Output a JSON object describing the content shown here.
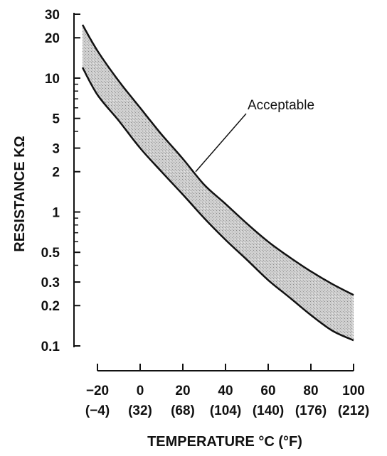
{
  "chart_data": {
    "type": "area",
    "title": "",
    "xlabel": "TEMPERATURE °C (°F)",
    "ylabel": "RESISTANCE KΩ",
    "y_scale": "log",
    "ylim": [
      0.1,
      30
    ],
    "xlim": [
      -20,
      100
    ],
    "y_ticks": [
      "30",
      "20",
      "10",
      "5",
      "3",
      "2",
      "1",
      "0.5",
      "0.3",
      "0.2",
      "0.1"
    ],
    "y_tick_values": [
      30,
      20,
      10,
      5,
      3,
      2,
      1,
      0.5,
      0.3,
      0.2,
      0.1
    ],
    "x_ticks_c": [
      "−20",
      "0",
      "20",
      "40",
      "60",
      "80",
      "100"
    ],
    "x_ticks_f": [
      "(−4)",
      "(32)",
      "(68)",
      "(104)",
      "(140)",
      "(176)",
      "(212)"
    ],
    "x_tick_values": [
      -20,
      0,
      20,
      40,
      60,
      80,
      100
    ],
    "series": [
      {
        "x": [
          -27,
          -20,
          -10,
          0,
          10,
          20,
          30,
          40,
          50,
          60,
          70,
          80,
          90,
          100
        ],
        "upper": [
          25,
          16,
          9.5,
          6.0,
          3.8,
          2.5,
          1.6,
          1.15,
          0.82,
          0.6,
          0.46,
          0.36,
          0.29,
          0.24
        ],
        "lower": [
          12,
          7.5,
          4.8,
          3.0,
          2.0,
          1.35,
          0.9,
          0.62,
          0.44,
          0.31,
          0.23,
          0.17,
          0.13,
          0.11
        ]
      }
    ],
    "annotations": [
      {
        "text": "Acceptable",
        "x": 26,
        "y": 2.0
      }
    ],
    "grid": false,
    "legend": "none"
  }
}
